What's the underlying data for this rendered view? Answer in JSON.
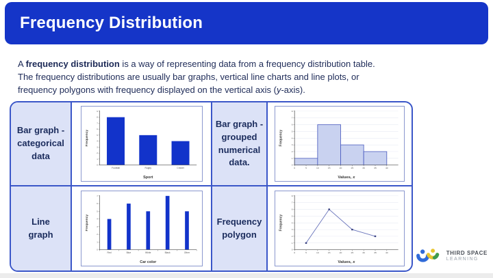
{
  "header": {
    "title": "Frequency Distribution"
  },
  "intro": {
    "line1_pre": "A ",
    "line1_bold": "frequency distribution",
    "line1_rest": " is a way of representing data from a frequency distribution table.",
    "line2": "The frequency distributions are usually bar graphs, vertical line charts and line plots, or",
    "line3_pre": "frequency polygons with frequency displayed on the vertical axis (",
    "line3_italic": "y",
    "line3_post": "-axis)."
  },
  "table": {
    "labels": [
      "Bar graph -\ncategorical\ndata",
      "Bar graph -\ngrouped\nnumerical\ndata.",
      "Line\ngraph",
      "Frequency\npolygon"
    ]
  },
  "chart_data": [
    {
      "id": "bar-categorical",
      "type": "bar",
      "categories": [
        "Football",
        "Rugby",
        "Cricket"
      ],
      "values": [
        8,
        5,
        4
      ],
      "xlabel": {
        "text": "Sport"
      },
      "ylabel": "Frequency",
      "ylim": [
        0,
        9
      ],
      "ytick_step": 1,
      "grid": false,
      "bar_color": "#1233CA"
    },
    {
      "id": "histogram-grouped-numerical",
      "type": "histogram",
      "bin_edges": [
        0,
        10,
        20,
        30,
        40
      ],
      "values": [
        1,
        6,
        3,
        2
      ],
      "xlabel": {
        "text": "Values, ",
        "italic": "x"
      },
      "ylabel": "Frequency",
      "xlim": [
        0,
        45
      ],
      "xticks": [
        0,
        5,
        10,
        15,
        20,
        25,
        30,
        35,
        40
      ],
      "ylim": [
        0,
        8
      ],
      "ytick_step": 1,
      "grid": true,
      "bar_fill": "#C9D2F0",
      "bar_border": "#4A5BBF"
    },
    {
      "id": "vertical-line-graph",
      "type": "vertical-line",
      "categories": [
        "Red",
        "Blue",
        "White",
        "Black",
        "Other"
      ],
      "values": [
        4,
        6,
        5,
        7,
        5
      ],
      "xlabel": {
        "text": "Car color"
      },
      "ylabel": "Frequency",
      "ylim": [
        0,
        7
      ],
      "ytick_step": 1,
      "grid": false,
      "bar_color": "#1233CA"
    },
    {
      "id": "frequency-polygon",
      "type": "line",
      "x": [
        5,
        15,
        25,
        35
      ],
      "y": [
        1,
        6,
        3,
        2
      ],
      "xlabel": {
        "text": "Values, ",
        "italic": "x"
      },
      "ylabel": "Frequency",
      "xlim": [
        0,
        45
      ],
      "xticks": [
        0,
        5,
        10,
        15,
        20,
        25,
        30,
        35,
        40
      ],
      "ylim": [
        0,
        8
      ],
      "ytick_step": 1,
      "grid": true,
      "line_color": "#6B76BC",
      "marker_color": "#3A4280"
    }
  ],
  "logo": {
    "line1": "THIRD SPACE",
    "line2": "LEARNING"
  },
  "colors": {
    "header_bg": "#1535C8",
    "table_border": "#3A56C8",
    "label_cell_bg": "#DCE2F7",
    "body_text": "#1D2A57",
    "bar_blue": "#1233CA",
    "logo_blue": "#2F6AD8",
    "logo_yellow": "#E8C52F",
    "logo_green": "#3E9B4F"
  }
}
